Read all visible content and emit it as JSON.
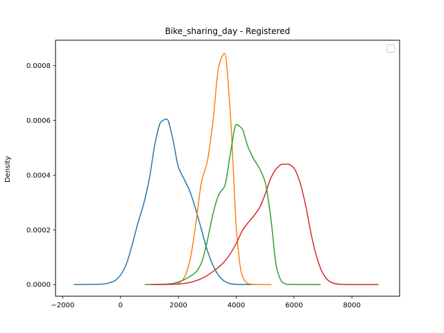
{
  "chart_data": {
    "type": "line",
    "title": "Bike_sharing_day - Registered",
    "xlabel": "",
    "ylabel": "Density",
    "xlim": [
      -2250,
      9650
    ],
    "ylim": [
      -4.25e-05,
      0.000893
    ],
    "xticks": [
      -2000,
      0,
      2000,
      4000,
      6000,
      8000
    ],
    "xtick_labels": [
      "−2000",
      "0",
      "2000",
      "4000",
      "6000",
      "8000"
    ],
    "yticks": [
      0,
      0.0002,
      0.0004,
      0.0006,
      0.0008
    ],
    "ytick_labels": [
      "0.0000",
      "0.0002",
      "0.0004",
      "0.0006",
      "0.0008"
    ],
    "legend": {
      "placement": "top-right",
      "entries": []
    },
    "grid": false,
    "series": [
      {
        "color": "#1f77b4",
        "x": [
          -1600,
          -600,
          -400,
          -200,
          0,
          200,
          400,
          600,
          800,
          1000,
          1200,
          1400,
          1600,
          1800,
          2000,
          2200,
          2400,
          2600,
          2800,
          3000,
          3200,
          3400,
          3600,
          3800,
          4000,
          4200,
          4600
        ],
        "y": [
          0,
          2e-06,
          6e-06,
          1.4e-05,
          3.5e-05,
          7.5e-05,
          0.000145,
          0.000225,
          0.000295,
          0.00039,
          0.00052,
          0.000595,
          0.000605,
          0.000535,
          0.00043,
          0.000385,
          0.00034,
          0.000275,
          0.0002,
          0.000125,
          7e-05,
          3.2e-05,
          1.2e-05,
          3e-06,
          8e-07,
          2e-07,
          0
        ]
      },
      {
        "color": "#ff7f0e",
        "x": [
          900,
          1800,
          2000,
          2200,
          2400,
          2600,
          2800,
          3000,
          3200,
          3400,
          3600,
          3800,
          3900,
          4000,
          4200,
          4400,
          4600,
          5200
        ],
        "y": [
          0,
          1e-06,
          5e-06,
          2.5e-05,
          9e-05,
          0.00022,
          0.000375,
          0.00045,
          0.0006,
          0.0008,
          0.000845,
          0.00062,
          0.00042,
          0.00021,
          3.5e-05,
          4e-06,
          5e-07,
          0
        ]
      },
      {
        "color": "#2ca02c",
        "x": [
          850,
          1500,
          1800,
          2000,
          2200,
          2400,
          2600,
          2800,
          3000,
          3200,
          3400,
          3600,
          3800,
          4000,
          4200,
          4400,
          4600,
          4800,
          5000,
          5200,
          5400,
          5600,
          5800,
          6900
        ],
        "y": [
          0,
          1e-06,
          4e-06,
          1e-05,
          1.8e-05,
          3e-05,
          4.5e-05,
          8e-05,
          0.00016,
          0.00026,
          0.00033,
          0.00036,
          0.00048,
          0.000585,
          0.00057,
          0.000505,
          0.00046,
          0.000425,
          0.000375,
          0.00024,
          6e-05,
          8e-06,
          5e-07,
          0
        ]
      },
      {
        "color": "#d62728",
        "x": [
          1100,
          2000,
          2400,
          2800,
          3200,
          3600,
          4000,
          4200,
          4400,
          4600,
          4800,
          5000,
          5200,
          5400,
          5600,
          5800,
          6000,
          6200,
          6400,
          6600,
          6800,
          7000,
          7200,
          7400,
          7600,
          8000,
          8900
        ],
        "y": [
          0,
          2e-06,
          8e-06,
          2.2e-05,
          4.8e-05,
          8.5e-05,
          0.00015,
          0.000195,
          0.000225,
          0.00025,
          0.00028,
          0.00033,
          0.00039,
          0.000425,
          0.00044,
          0.00044,
          0.000425,
          0.000375,
          0.00029,
          0.00018,
          9.5e-05,
          4e-05,
          1.4e-05,
          4e-06,
          1e-06,
          0,
          0
        ]
      }
    ]
  }
}
